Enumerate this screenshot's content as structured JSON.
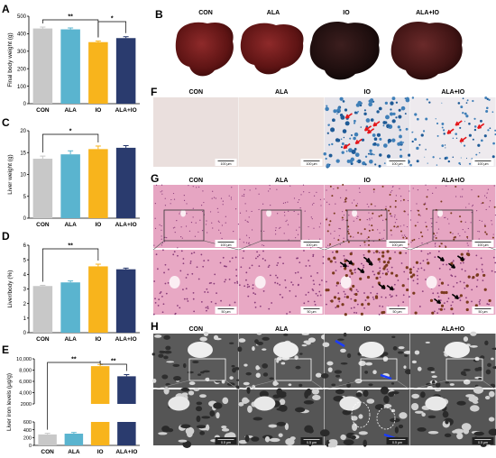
{
  "panel_letters": {
    "A": "A",
    "B": "B",
    "C": "C",
    "D": "D",
    "E": "E",
    "F": "F",
    "G": "G",
    "H": "H"
  },
  "groups": [
    "CON",
    "ALA",
    "IO",
    "ALA+IO"
  ],
  "colors": {
    "CON": "#c8c8c8",
    "ALA": "#5ab4cf",
    "IO": "#f8b41c",
    "ALA+IO": "#2a3b6e"
  },
  "chart_data": [
    {
      "panel": "A",
      "type": "bar",
      "categories": [
        "CON",
        "ALA",
        "IO",
        "ALA+IO"
      ],
      "values": [
        430,
        425,
        352,
        375
      ],
      "errors": [
        8,
        8,
        6,
        8
      ],
      "ylabel": "Final body weight (g)",
      "ylim": [
        0,
        500
      ],
      "yticks": [
        "0",
        "100",
        "200",
        "300",
        "400",
        "500"
      ],
      "significance": [
        {
          "pair": [
            "CON",
            "IO"
          ],
          "label": "**"
        },
        {
          "pair": [
            "IO",
            "ALA+IO"
          ],
          "label": "*"
        }
      ]
    },
    {
      "panel": "C",
      "type": "bar",
      "categories": [
        "CON",
        "ALA",
        "IO",
        "ALA+IO"
      ],
      "values": [
        13.6,
        14.6,
        15.8,
        16.1
      ],
      "errors": [
        0.6,
        0.8,
        0.7,
        0.5
      ],
      "ylabel": "Liver weight (g)",
      "ylim": [
        0,
        20
      ],
      "yticks": [
        "0",
        "5",
        "10",
        "15",
        "20"
      ],
      "significance": [
        {
          "pair": [
            "CON",
            "IO"
          ],
          "label": "*"
        }
      ]
    },
    {
      "panel": "D",
      "type": "bar",
      "categories": [
        "CON",
        "ALA",
        "IO",
        "ALA+IO"
      ],
      "values": [
        3.2,
        3.45,
        4.55,
        4.35
      ],
      "errors": [
        0.05,
        0.1,
        0.15,
        0.08
      ],
      "ylabel": "Liver/body (%)",
      "ylim": [
        0,
        6
      ],
      "yticks": [
        "0",
        "1",
        "2",
        "3",
        "4",
        "5",
        "6"
      ],
      "significance": [
        {
          "pair": [
            "CON",
            "IO"
          ],
          "label": "**"
        }
      ]
    },
    {
      "panel": "E",
      "type": "bar",
      "categories": [
        "CON",
        "ALA",
        "IO",
        "ALA+IO"
      ],
      "values": [
        280,
        300,
        8700,
        6900
      ],
      "errors": [
        30,
        30,
        300,
        300
      ],
      "ylabel": "Liver iron levels (μg/g)",
      "broken_axis": true,
      "lower_ticks": [
        "0",
        "200",
        "400",
        "600"
      ],
      "upper_ticks": [
        "2000",
        "4,000",
        "6,000",
        "8,000",
        "10,000"
      ],
      "significance": [
        {
          "pair": [
            "CON",
            "IO"
          ],
          "label": "**"
        },
        {
          "pair": [
            "IO",
            "ALA+IO"
          ],
          "label": "**"
        }
      ]
    }
  ],
  "micro_panels": {
    "F": {
      "labels": [
        "CON",
        "ALA",
        "IO",
        "ALA+IO"
      ],
      "scale": [
        "100 μm",
        "100 μm",
        "100 μm",
        "100 μm"
      ]
    },
    "G": {
      "labels": [
        "CON",
        "ALA",
        "IO",
        "ALA+IO"
      ],
      "scale_top": [
        "100 μm",
        "100 μm",
        "100 μm",
        "100 μm"
      ],
      "scale_bottom": [
        "50 μm",
        "50 μm",
        "50 μm",
        "50 μm"
      ]
    },
    "H": {
      "labels": [
        "CON",
        "ALA",
        "IO",
        "ALA+IO"
      ],
      "scale_top": [
        "2 μm",
        "2 μm",
        "2 μm",
        "2 μm"
      ],
      "scale_bottom": [
        "0.5 μm",
        "0.5 μm",
        "0.5 μm",
        "0.5 μm"
      ]
    }
  },
  "b_labels": [
    "CON",
    "ALA",
    "IO",
    "ALA+IO"
  ]
}
